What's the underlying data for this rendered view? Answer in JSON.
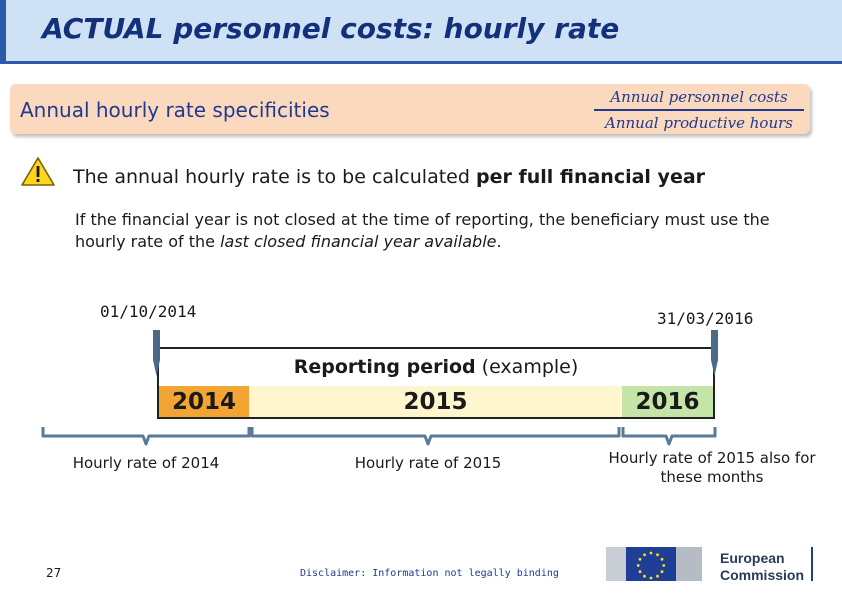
{
  "slide": {
    "title": "ACTUAL personnel costs: hourly rate",
    "spec_label": "Annual hourly rate specificities",
    "formula": {
      "numerator": "Annual personnel costs",
      "denominator": "Annual productive hours"
    },
    "main_statement_prefix": "The annual hourly rate is to be calculated ",
    "main_statement_emphasis": "per full financial year",
    "detail_prefix": "If the financial year is not closed at the time of reporting, the beneficiary must use the hourly rate of the ",
    "detail_emphasis": "last closed financial year available",
    "detail_suffix": ".",
    "warning_icon": "warning-triangle-icon"
  },
  "timeline": {
    "start_date": "01/10/2014",
    "end_date": "31/03/2016",
    "period_label_bold": "Reporting period",
    "period_label_rest": " (example)",
    "years": [
      {
        "label": "2014",
        "color": "#f2a533"
      },
      {
        "label": "2015",
        "color": "#fef6cf"
      },
      {
        "label": "2016",
        "color": "#c5e5a8"
      }
    ],
    "captions": [
      "Hourly rate of 2014",
      "Hourly rate of 2015",
      "Hourly rate of 2015 also for these months"
    ]
  },
  "footer": {
    "page_number": "27",
    "disclaimer": "Disclaimer: Information not legally binding",
    "logo_line1": "European",
    "logo_line2": "Commission"
  },
  "colors": {
    "title_bar": "#cfe1f4",
    "title_text": "#13307a",
    "spec_box": "#fbd9be",
    "accent_blue": "#1f3a8f"
  }
}
